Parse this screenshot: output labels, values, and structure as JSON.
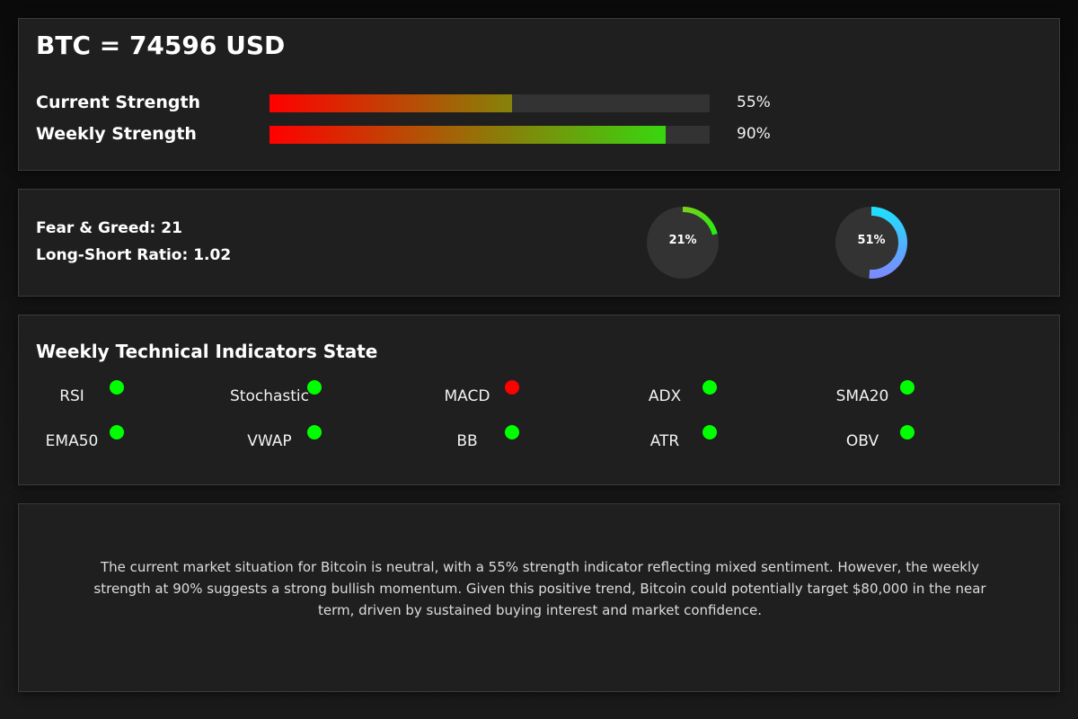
{
  "header": {
    "title": "BTC = 74596 USD"
  },
  "strength": [
    {
      "label": "Current Strength",
      "value_text": "55%",
      "fraction": 0.55
    },
    {
      "label": "Weekly Strength",
      "value_text": "90%",
      "fraction": 0.9
    }
  ],
  "sentiment": {
    "fear_greed": "Fear & Greed: 21",
    "long_short": "Long-Short Ratio: 1.02",
    "gauges": [
      {
        "label": "21%",
        "fraction": 0.21,
        "color_start": "#7ad11a",
        "color_end": "#22ee11",
        "track_color": "#333333"
      },
      {
        "label": "51%",
        "fraction": 0.51,
        "color_start": "#22ddff",
        "color_end": "#7a8cff",
        "track_color": "#333333"
      }
    ]
  },
  "indicators": {
    "title": "Weekly Technical Indicators State",
    "items": [
      {
        "name": "RSI",
        "state": "positive"
      },
      {
        "name": "Stochastic",
        "state": "positive"
      },
      {
        "name": "MACD",
        "state": "negative"
      },
      {
        "name": "ADX",
        "state": "positive"
      },
      {
        "name": "SMA20",
        "state": "positive"
      },
      {
        "name": "EMA50",
        "state": "positive"
      },
      {
        "name": "VWAP",
        "state": "positive"
      },
      {
        "name": "BB",
        "state": "positive"
      },
      {
        "name": "ATR",
        "state": "positive"
      },
      {
        "name": "OBV",
        "state": "positive"
      }
    ],
    "colors": {
      "positive": "#00ff00",
      "negative": "#ff0000"
    }
  },
  "summary": {
    "text": "The current market situation for Bitcoin is neutral, with a 55% strength indicator reflecting mixed sentiment. However, the weekly strength at 90% suggests a strong bullish momentum. Given this positive trend, Bitcoin could potentially target $80,000 in the near term, driven by sustained buying interest and market confidence."
  },
  "colors": {
    "bar_start": "#ff0000",
    "bar_end": "#22ee11",
    "bar_track": "#333333",
    "panel_background": "#1f1f1f",
    "panel_border": "#3a3a3a"
  }
}
